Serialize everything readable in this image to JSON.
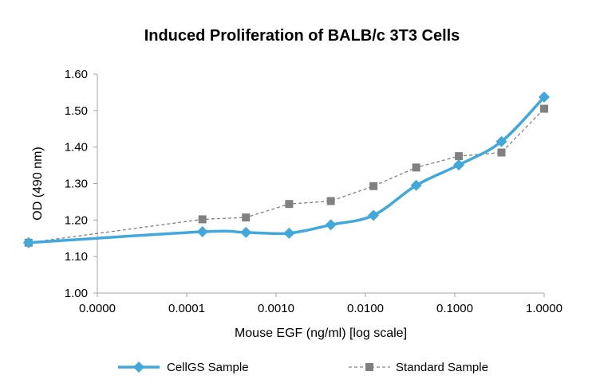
{
  "chart_data": {
    "type": "line",
    "title": "Induced Proliferation of BALB/c 3T3 Cells",
    "xlabel": "Mouse EGF (ng/ml) [log scale]",
    "ylabel": "OD (490 nm)",
    "x_scale": "log",
    "x_tick_labels": [
      "0.0000",
      "0.0001",
      "0.0010",
      "0.0100",
      "0.1000",
      "1.0000"
    ],
    "y_tick_labels": [
      "1.00",
      "1.10",
      "1.20",
      "1.30",
      "1.40",
      "1.50",
      "1.60"
    ],
    "ylim": [
      1.0,
      1.6
    ],
    "grid": false,
    "legend_position": "bottom",
    "series": [
      {
        "name": "CellGS Sample",
        "color": "#41a8dc",
        "marker": "diamond",
        "points": [
          {
            "x": 1.7e-06,
            "y": 1.138
          },
          {
            "x": 0.00015,
            "y": 1.168
          },
          {
            "x": 0.00046,
            "y": 1.166
          },
          {
            "x": 0.0014,
            "y": 1.164
          },
          {
            "x": 0.0041,
            "y": 1.187
          },
          {
            "x": 0.0123,
            "y": 1.213
          },
          {
            "x": 0.037,
            "y": 1.295
          },
          {
            "x": 0.111,
            "y": 1.351
          },
          {
            "x": 0.333,
            "y": 1.415
          },
          {
            "x": 1.0,
            "y": 1.537
          }
        ]
      },
      {
        "name": "Standard Sample",
        "color": "#808080",
        "marker": "square",
        "points": [
          {
            "x": 1.7e-06,
            "y": 1.138
          },
          {
            "x": 0.00015,
            "y": 1.202
          },
          {
            "x": 0.00046,
            "y": 1.207
          },
          {
            "x": 0.0014,
            "y": 1.244
          },
          {
            "x": 0.0041,
            "y": 1.252
          },
          {
            "x": 0.0123,
            "y": 1.293
          },
          {
            "x": 0.037,
            "y": 1.344
          },
          {
            "x": 0.111,
            "y": 1.375
          },
          {
            "x": 0.333,
            "y": 1.385
          },
          {
            "x": 1.0,
            "y": 1.505
          }
        ]
      }
    ]
  }
}
